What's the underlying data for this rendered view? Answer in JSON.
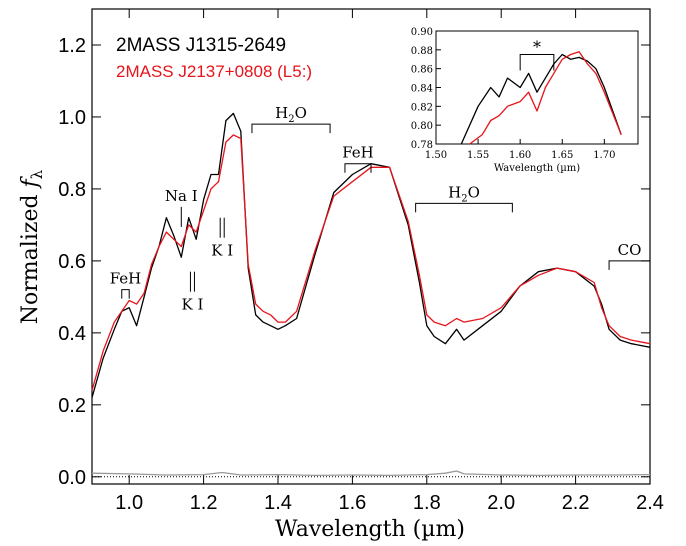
{
  "chart_data": {
    "type": "line",
    "xlabel": "Wavelength (µm)",
    "ylabel_main": "Normalized ",
    "ylabel_f": "f",
    "ylabel_sub": "λ",
    "xlim": [
      0.9,
      2.4
    ],
    "ylim": [
      -0.02,
      1.3
    ],
    "xticks": [
      1.0,
      1.2,
      1.4,
      1.6,
      1.8,
      2.0,
      2.2,
      2.4
    ],
    "xtick_labels": [
      "1.0",
      "1.2",
      "1.4",
      "1.6",
      "1.8",
      "2.0",
      "2.2",
      "2.4"
    ],
    "yticks": [
      0.0,
      0.2,
      0.4,
      0.6,
      0.8,
      1.0,
      1.2
    ],
    "ytick_labels": [
      "0.0",
      "0.2",
      "0.4",
      "0.6",
      "0.8",
      "1.0",
      "1.2"
    ],
    "zero_line": 0.0,
    "series": [
      {
        "name": "2MASS J1315-2649",
        "color": "#000000",
        "x": [
          0.9,
          0.93,
          0.96,
          0.98,
          1.0,
          1.02,
          1.04,
          1.06,
          1.08,
          1.1,
          1.12,
          1.14,
          1.16,
          1.18,
          1.2,
          1.22,
          1.24,
          1.26,
          1.28,
          1.3,
          1.32,
          1.34,
          1.36,
          1.38,
          1.4,
          1.42,
          1.45,
          1.5,
          1.55,
          1.6,
          1.65,
          1.7,
          1.75,
          1.78,
          1.8,
          1.82,
          1.85,
          1.88,
          1.9,
          1.95,
          2.0,
          2.05,
          2.1,
          2.15,
          2.2,
          2.25,
          2.27,
          2.29,
          2.32,
          2.35,
          2.4
        ],
        "y": [
          0.22,
          0.33,
          0.41,
          0.46,
          0.47,
          0.42,
          0.5,
          0.58,
          0.64,
          0.72,
          0.67,
          0.61,
          0.72,
          0.66,
          0.77,
          0.84,
          0.84,
          0.99,
          1.01,
          0.96,
          0.58,
          0.45,
          0.43,
          0.42,
          0.41,
          0.42,
          0.44,
          0.62,
          0.79,
          0.84,
          0.87,
          0.86,
          0.7,
          0.54,
          0.42,
          0.39,
          0.37,
          0.41,
          0.38,
          0.42,
          0.46,
          0.53,
          0.57,
          0.58,
          0.57,
          0.53,
          0.48,
          0.41,
          0.38,
          0.37,
          0.36
        ]
      },
      {
        "name": "2MASS J2137+0808 (L5:)",
        "color": "#e8141b",
        "x": [
          0.9,
          0.93,
          0.96,
          0.98,
          1.0,
          1.02,
          1.04,
          1.06,
          1.08,
          1.1,
          1.12,
          1.14,
          1.16,
          1.18,
          1.2,
          1.22,
          1.24,
          1.26,
          1.28,
          1.3,
          1.32,
          1.34,
          1.36,
          1.38,
          1.4,
          1.42,
          1.45,
          1.5,
          1.55,
          1.6,
          1.65,
          1.7,
          1.75,
          1.78,
          1.8,
          1.82,
          1.85,
          1.88,
          1.9,
          1.95,
          2.0,
          2.05,
          2.1,
          2.15,
          2.2,
          2.25,
          2.27,
          2.29,
          2.32,
          2.35,
          2.4
        ],
        "y": [
          0.24,
          0.35,
          0.43,
          0.46,
          0.49,
          0.48,
          0.51,
          0.59,
          0.64,
          0.68,
          0.66,
          0.64,
          0.7,
          0.68,
          0.74,
          0.8,
          0.82,
          0.93,
          0.95,
          0.94,
          0.59,
          0.48,
          0.46,
          0.45,
          0.43,
          0.43,
          0.46,
          0.63,
          0.78,
          0.82,
          0.86,
          0.86,
          0.71,
          0.56,
          0.45,
          0.43,
          0.42,
          0.44,
          0.43,
          0.44,
          0.47,
          0.53,
          0.56,
          0.58,
          0.57,
          0.54,
          0.47,
          0.42,
          0.39,
          0.38,
          0.37
        ]
      },
      {
        "name": "",
        "color": "#999999",
        "x": [
          0.9,
          1.0,
          1.1,
          1.2,
          1.25,
          1.3,
          1.4,
          1.5,
          1.6,
          1.7,
          1.8,
          1.85,
          1.88,
          1.9,
          2.0,
          2.1,
          2.2,
          2.3,
          2.4
        ],
        "y": [
          0.01,
          0.008,
          0.005,
          0.006,
          0.012,
          0.005,
          0.006,
          0.004,
          0.005,
          0.004,
          0.006,
          0.01,
          0.016,
          0.008,
          0.005,
          0.004,
          0.005,
          0.005,
          0.006
        ]
      }
    ],
    "legend": [
      "2MASS J1315-2649",
      "2MASS J2137+0808 (L5:)"
    ],
    "annotations": [
      {
        "label": "FeH",
        "bracket": [
          0.98,
          1.0
        ],
        "y": 0.52
      },
      {
        "label": "Na I",
        "x": 1.14,
        "y": 0.75
      },
      {
        "label": "K I",
        "x": 1.17,
        "y": 0.57,
        "below": true
      },
      {
        "label": "K I",
        "x": 1.25,
        "y": 0.72,
        "below": true
      },
      {
        "label": "H",
        "sub": "2",
        "suffix": "O",
        "bracket": [
          1.33,
          1.54
        ],
        "y": 0.98
      },
      {
        "label": "FeH",
        "bracket": [
          1.58,
          1.65
        ],
        "y": 0.87
      },
      {
        "label": "H",
        "sub": "2",
        "suffix": "O",
        "bracket": [
          1.77,
          2.03
        ],
        "y": 0.76
      },
      {
        "label": "CO",
        "bracket": [
          2.29,
          2.4
        ],
        "y": 0.6
      }
    ],
    "inset": {
      "type": "line",
      "xlabel": "Wavelength (µm)",
      "xlim": [
        1.5,
        1.74
      ],
      "ylim": [
        0.78,
        0.9
      ],
      "xticks": [
        1.5,
        1.55,
        1.6,
        1.65,
        1.7
      ],
      "xtick_labels": [
        "1.50",
        "1.55",
        "1.60",
        "1.65",
        "1.70"
      ],
      "yticks": [
        0.78,
        0.8,
        0.82,
        0.84,
        0.86,
        0.88,
        0.9
      ],
      "ytick_labels": [
        "0.78",
        "0.80",
        "0.82",
        "0.84",
        "0.86",
        "0.88",
        "0.90"
      ],
      "marker": "*",
      "marker_bracket": [
        1.6,
        1.64
      ],
      "series": [
        {
          "name": "2MASS J1315-2649",
          "color": "#000000",
          "x": [
            1.53,
            1.55,
            1.565,
            1.575,
            1.585,
            1.6,
            1.61,
            1.62,
            1.63,
            1.64,
            1.65,
            1.66,
            1.67,
            1.68,
            1.69,
            1.7,
            1.72
          ],
          "y": [
            0.78,
            0.82,
            0.84,
            0.83,
            0.85,
            0.84,
            0.855,
            0.835,
            0.85,
            0.865,
            0.875,
            0.87,
            0.872,
            0.868,
            0.86,
            0.84,
            0.79
          ]
        },
        {
          "name": "2MASS J2137+0808 (L5:)",
          "color": "#e8141b",
          "x": [
            1.54,
            1.555,
            1.565,
            1.575,
            1.585,
            1.6,
            1.61,
            1.62,
            1.63,
            1.64,
            1.65,
            1.66,
            1.67,
            1.68,
            1.69,
            1.7,
            1.72
          ],
          "y": [
            0.78,
            0.79,
            0.805,
            0.81,
            0.82,
            0.825,
            0.835,
            0.815,
            0.84,
            0.855,
            0.87,
            0.875,
            0.878,
            0.865,
            0.855,
            0.835,
            0.79
          ]
        }
      ]
    }
  }
}
